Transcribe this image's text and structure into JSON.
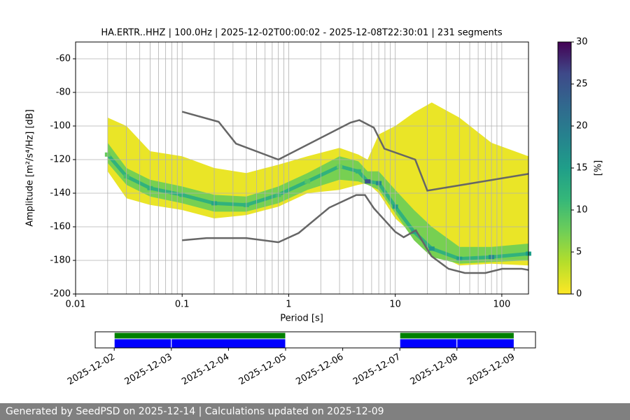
{
  "chart_data": [
    {
      "type": "ppsd",
      "title": "HA.ERTR..HHZ | 100.0Hz | 2025-12-02T00:00:02 - 2025-12-08T22:30:01 | 231 segments",
      "xlabel": "Period [s]",
      "ylabel": "Amplitude [m²/s⁴/Hz] [dB]",
      "xlog": true,
      "grid": true,
      "xlim": [
        0.01,
        178
      ],
      "ylim": [
        -200,
        -50
      ],
      "xticks": [
        0.01,
        0.1,
        1,
        10,
        100
      ],
      "xminorticks": [
        0.02,
        0.03,
        0.04,
        0.05,
        0.06,
        0.07,
        0.08,
        0.09,
        0.2,
        0.3,
        0.4,
        0.5,
        0.6,
        0.7,
        0.8,
        0.9,
        2,
        3,
        4,
        5,
        6,
        7,
        8,
        9,
        20,
        30,
        40,
        50,
        60,
        70,
        80,
        90
      ],
      "yticks": [
        -200,
        -180,
        -160,
        -140,
        -120,
        -100,
        -80,
        -60
      ],
      "density": {
        "x": [
          0.02,
          0.03,
          0.05,
          0.1,
          0.2,
          0.4,
          0.8,
          1.5,
          3,
          4.5,
          5.5,
          7,
          10,
          15,
          22,
          40,
          80,
          178
        ],
        "levels": [
          {
            "percent": 1,
            "high": [
              -95,
              -100,
              -115,
              -118,
              -125,
              -128,
              -123,
              -118,
              -113,
              -117,
              -120,
              -105,
              -100,
              -92,
              -86,
              -95,
              -110,
              -118
            ],
            "low": [
              -127,
              -143,
              -147,
              -150,
              -155,
              -153,
              -148,
              -140,
              -138,
              -135,
              -134,
              -140,
              -155,
              -165,
              -175,
              -183,
              -182,
              -183
            ]
          },
          {
            "percent": 7,
            "high": [
              -110,
              -125,
              -132,
              -136,
              -141,
              -142,
              -136,
              -128,
              -118,
              -121,
              -127,
              -127,
              -138,
              -150,
              -160,
              -172,
              -172,
              -170
            ],
            "low": [
              -122,
              -135,
              -142,
              -146,
              -151,
              -151,
              -146,
              -138,
              -132,
              -133,
              -135,
              -138,
              -152,
              -168,
              -178,
              -182,
              -181,
              -180
            ]
          }
        ],
        "mode": [
          -117,
          -130,
          -137,
          -141,
          -146,
          -147,
          -141,
          -133,
          -124,
          -127,
          -133,
          -134,
          -148,
          -163,
          -173,
          -179,
          -178,
          -176
        ],
        "mode_percent": [
          8,
          10,
          12,
          12,
          14,
          12,
          10,
          9,
          8,
          12,
          25,
          18,
          15,
          14,
          16,
          15,
          18,
          15
        ]
      },
      "series": [
        {
          "color": "#666666",
          "x": [
            0.1,
            0.22,
            0.32,
            0.8,
            3.8,
            4.6,
            6.3,
            7.9,
            15.4,
            20,
            178
          ],
          "values": [
            -91.5,
            -97.5,
            -110.5,
            -120,
            -98,
            -96.5,
            -101,
            -113.5,
            -120,
            -138.5,
            -128.5
          ]
        },
        {
          "color": "#666666",
          "x": [
            0.1,
            0.17,
            0.4,
            0.8,
            1.24,
            2.4,
            4.3,
            5.2,
            6.3,
            10,
            12,
            15.6,
            21.9,
            31.6,
            45,
            70,
            101,
            154,
            178
          ],
          "values": [
            -168,
            -166.7,
            -166.7,
            -169.2,
            -163.7,
            -148.6,
            -141.1,
            -141.1,
            -149,
            -163,
            -166.2,
            -162.1,
            -177.5,
            -185,
            -187.5,
            -187.5,
            -185,
            -185,
            -185.7
          ]
        }
      ],
      "colorbar": {
        "label": "[%]",
        "colormap": "viridis_r",
        "lim": [
          0,
          30
        ],
        "ticks": [
          0,
          5,
          10,
          15,
          20,
          25,
          30
        ]
      }
    },
    {
      "type": "timeline",
      "xlim": [
        "2025-12-01T16:00",
        "2025-12-09T09:00"
      ],
      "xticks": [
        "2025-12-02",
        "2025-12-03",
        "2025-12-04",
        "2025-12-05",
        "2025-12-06",
        "2025-12-07",
        "2025-12-08",
        "2025-12-09"
      ],
      "series": [
        {
          "color": "#008000",
          "segments": [
            [
              "2025-12-02T00:00",
              "2025-12-05T00:00"
            ],
            [
              "2025-12-07T00:00",
              "2025-12-09T00:00"
            ]
          ]
        },
        {
          "color": "#0000ff",
          "segments": [
            [
              "2025-12-02T00:00",
              "2025-12-03T00:00"
            ],
            [
              "2025-12-03T00:00",
              "2025-12-05T00:00"
            ],
            [
              "2025-12-07T00:00",
              "2025-12-08T00:00"
            ],
            [
              "2025-12-08T00:00",
              "2025-12-09T00:00"
            ]
          ]
        }
      ]
    }
  ],
  "footer": "Generated by SeedPSD on 2025-12-14 | Calculations updated on 2025-12-09"
}
